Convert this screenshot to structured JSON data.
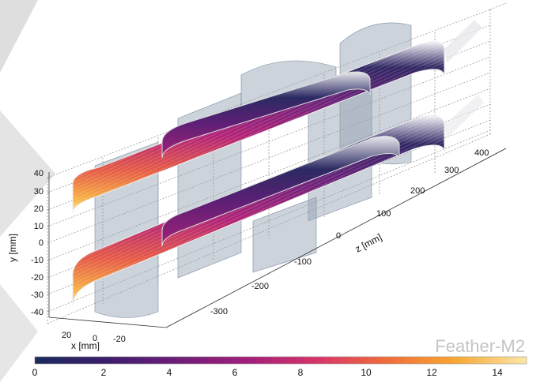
{
  "brand_text": "Feather-M2",
  "axes": {
    "x": {
      "label": "x [mm]",
      "ticks": [
        "20",
        "0",
        "-20"
      ]
    },
    "y": {
      "label": "y [mm]",
      "ticks": [
        "40",
        "30",
        "20",
        "10",
        "0",
        "-10",
        "-20",
        "-30",
        "-40"
      ]
    },
    "z": {
      "label": "z [mm]",
      "ticks": [
        "400",
        "300",
        "200",
        "100",
        "0",
        "-100",
        "-200",
        "-300"
      ]
    }
  },
  "colorbar": {
    "ticks": [
      "0",
      "2",
      "4",
      "6",
      "8",
      "10",
      "12",
      "14"
    ],
    "range": [
      0,
      15
    ],
    "colors": [
      "#1b2a5c",
      "#3b1e6a",
      "#6a1e78",
      "#a11f7a",
      "#d6336a",
      "#f06a3d",
      "#f8a530",
      "#fbe7a8"
    ]
  }
}
